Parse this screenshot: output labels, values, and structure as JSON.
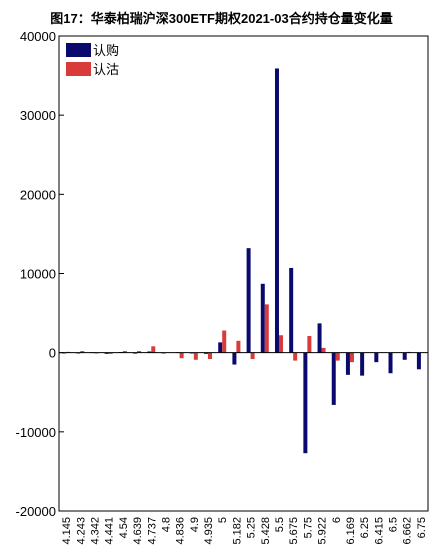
{
  "chart_data": {
    "type": "bar",
    "title": "图17：华泰柏瑞沪深300ETF期权2021-03合约持仓量变化量",
    "xlabel": "",
    "ylabel": "",
    "ylim": [
      -20000,
      40000
    ],
    "yticks": [
      -20000,
      -10000,
      0,
      10000,
      20000,
      30000,
      40000
    ],
    "grid": false,
    "legend_position": "top-left",
    "categories": [
      "4.145",
      "4.243",
      "4.342",
      "4.441",
      "4.54",
      "4.639",
      "4.737",
      "4.8",
      "4.836",
      "4.9",
      "4.935",
      "5",
      "5.182",
      "5.25",
      "5.428",
      "5.5",
      "5.675",
      "5.75",
      "5.922",
      "6",
      "6.169",
      "6.25",
      "6.415",
      "6.5",
      "6.662",
      "6.75"
    ],
    "series": [
      {
        "name": "认购",
        "color": "#0a0a6e",
        "values": [
          -100,
          -80,
          50,
          -150,
          80,
          -120,
          150,
          -80,
          50,
          -100,
          -150,
          1300,
          -1500,
          13200,
          8700,
          35900,
          10700,
          -12700,
          3700,
          -6600,
          -2800,
          -2900,
          -1200,
          -2600,
          -900,
          -2100
        ]
      },
      {
        "name": "认沽",
        "color": "#d93a3a",
        "values": [
          100,
          200,
          -100,
          -150,
          200,
          200,
          800,
          0,
          -700,
          -900,
          -800,
          2800,
          1500,
          -800,
          6100,
          2200,
          -1000,
          2100,
          600,
          -1000,
          -1200,
          0,
          0,
          0,
          100,
          0
        ]
      }
    ]
  }
}
